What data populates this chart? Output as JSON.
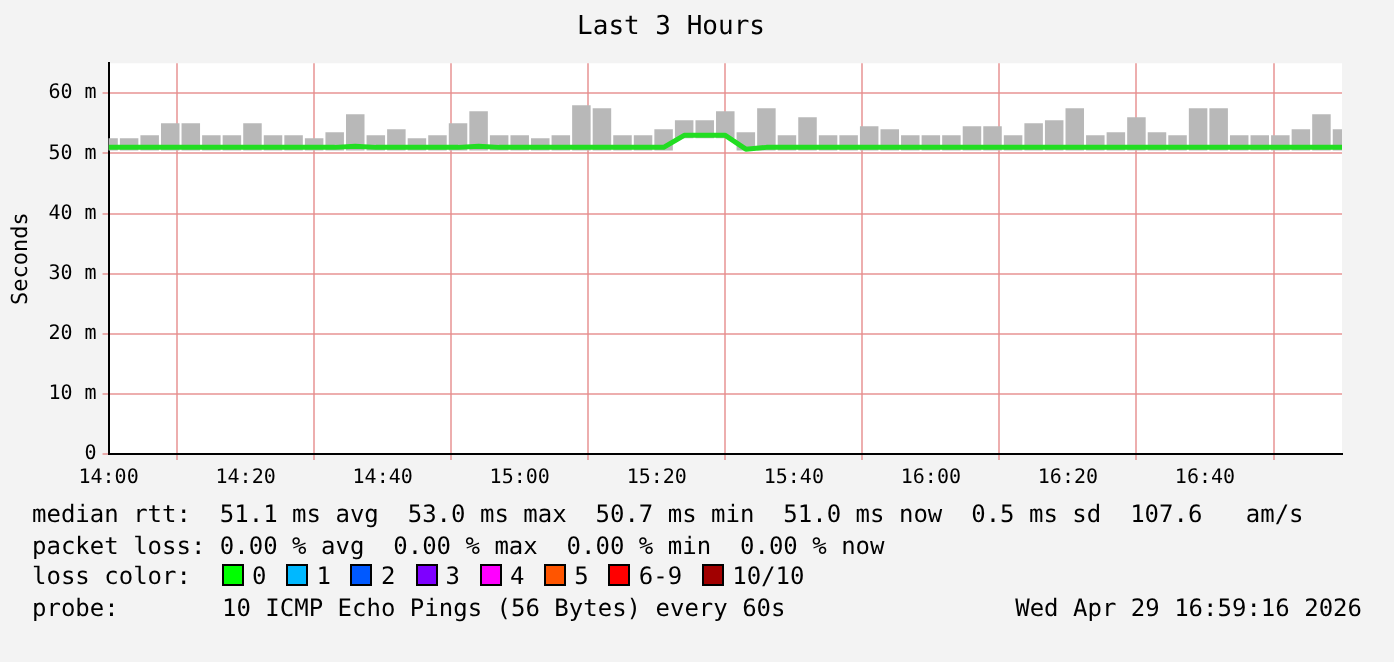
{
  "chart_data": {
    "type": "line",
    "title": "Last 3 Hours",
    "ylabel": "Seconds",
    "x": [
      14,
      14.05,
      14.1,
      14.15,
      14.2,
      14.25,
      14.3,
      14.35,
      14.4,
      14.45,
      14.5,
      14.55,
      14.6,
      14.65,
      14.7,
      14.75,
      14.8,
      14.85,
      14.9,
      14.95,
      15,
      15.05,
      15.1,
      15.15,
      15.2,
      15.25,
      15.3,
      15.35,
      15.4,
      15.45,
      15.5,
      15.55,
      15.6,
      15.65,
      15.7,
      15.75,
      15.8,
      15.85,
      15.9,
      15.95,
      16,
      16.05,
      16.1,
      16.15,
      16.2,
      16.25,
      16.3,
      16.35,
      16.4,
      16.45,
      16.5,
      16.55,
      16.6,
      16.65,
      16.7,
      16.75,
      16.8,
      16.85,
      16.9,
      16.95,
      17
    ],
    "series": [
      {
        "type": "bar",
        "color": "#b8b8b8",
        "base": [
          50.5,
          50.5,
          50.5,
          50.5,
          50.5,
          50.5,
          50.5,
          50.5,
          50.5,
          50.5,
          50.5,
          50.5,
          50.5,
          50.5,
          50.5,
          50.5,
          50.5,
          50.5,
          50.5,
          50.5,
          50.5,
          50.5,
          50.5,
          50.5,
          50.5,
          50.5,
          50.5,
          50.5,
          52.5,
          52.5,
          52.5,
          50.5,
          50.5,
          50.5,
          50.5,
          50.5,
          50.5,
          50.5,
          50.5,
          50.5,
          50.5,
          50.5,
          50.5,
          50.5,
          50.5,
          50.5,
          50.5,
          50.5,
          50.5,
          50.5,
          50.5,
          50.5,
          50.5,
          50.5,
          50.5,
          50.5,
          50.5,
          50.5,
          50.5,
          50.5,
          50.5
        ],
        "values": [
          2,
          2,
          2.5,
          4.5,
          4.5,
          2.5,
          2.5,
          4.5,
          2.5,
          2.5,
          2,
          3,
          6,
          2.5,
          3.5,
          2,
          2.5,
          4.5,
          6.5,
          2.5,
          2.5,
          2,
          2.5,
          7.5,
          7,
          2.5,
          2.5,
          3.5,
          3,
          3,
          4.5,
          3,
          7,
          2.5,
          5.5,
          2.5,
          2.5,
          4,
          3.5,
          2.5,
          2.5,
          2.5,
          4,
          4,
          2.5,
          4.5,
          5,
          7,
          2.5,
          3,
          5.5,
          3,
          2.5,
          7,
          7,
          2.5,
          2.5,
          2.5,
          3.5,
          6,
          3.5
        ]
      },
      {
        "color": "#22dd22",
        "values": [
          51,
          51,
          51,
          51,
          51,
          51,
          51,
          51,
          51,
          51,
          51,
          51,
          51.2,
          51,
          51,
          51,
          51,
          51,
          51.2,
          51,
          51,
          51,
          51,
          51,
          51,
          51,
          51,
          51,
          53,
          53,
          53,
          50.7,
          51,
          51,
          51,
          51,
          51,
          51,
          51,
          51,
          51,
          51,
          51,
          51,
          51,
          51,
          51,
          51,
          51,
          51,
          51,
          51,
          51,
          51,
          51,
          51,
          51,
          51,
          51,
          51,
          51
        ]
      }
    ],
    "xlim": [
      14,
      17
    ],
    "xticks": [
      {
        "value": 14,
        "label": "14:00"
      },
      {
        "value": 14.3333,
        "label": "14:20"
      },
      {
        "value": 14.6667,
        "label": "14:40"
      },
      {
        "value": 15,
        "label": "15:00"
      },
      {
        "value": 15.3333,
        "label": "15:20"
      },
      {
        "value": 15.6667,
        "label": "15:40"
      },
      {
        "value": 16,
        "label": "16:00"
      },
      {
        "value": 16.3333,
        "label": "16:20"
      },
      {
        "value": 16.6667,
        "label": "16:40"
      }
    ],
    "ylim": [
      0,
      65
    ],
    "yticks": [
      {
        "value": 0,
        "label": "0"
      },
      {
        "value": 10,
        "label": "10 m"
      },
      {
        "value": 20,
        "label": "20 m"
      },
      {
        "value": 30,
        "label": "30 m"
      },
      {
        "value": 40,
        "label": "40 m"
      },
      {
        "value": 50,
        "label": "50 m"
      },
      {
        "value": 60,
        "label": "60 m"
      }
    ],
    "grid": true,
    "marker": "none",
    "line_style": "solid",
    "annotations": [
      "median rtt:  51.1 ms avg  53.0 ms max  50.7 ms min  51.0 ms now  0.5 ms sd  107.6   am/s",
      "packet loss: 0.00 % avg  0.00 % max  0.00 % min  0.00 % now",
      "loss color:",
      "0",
      "1",
      "2",
      "3",
      "4",
      "5",
      "6-9",
      "10/10",
      "probe:",
      "10 ICMP Echo Pings (56 Bytes) every 60s",
      "Wed Apr 29 16:59:16 2026"
    ]
  }
}
